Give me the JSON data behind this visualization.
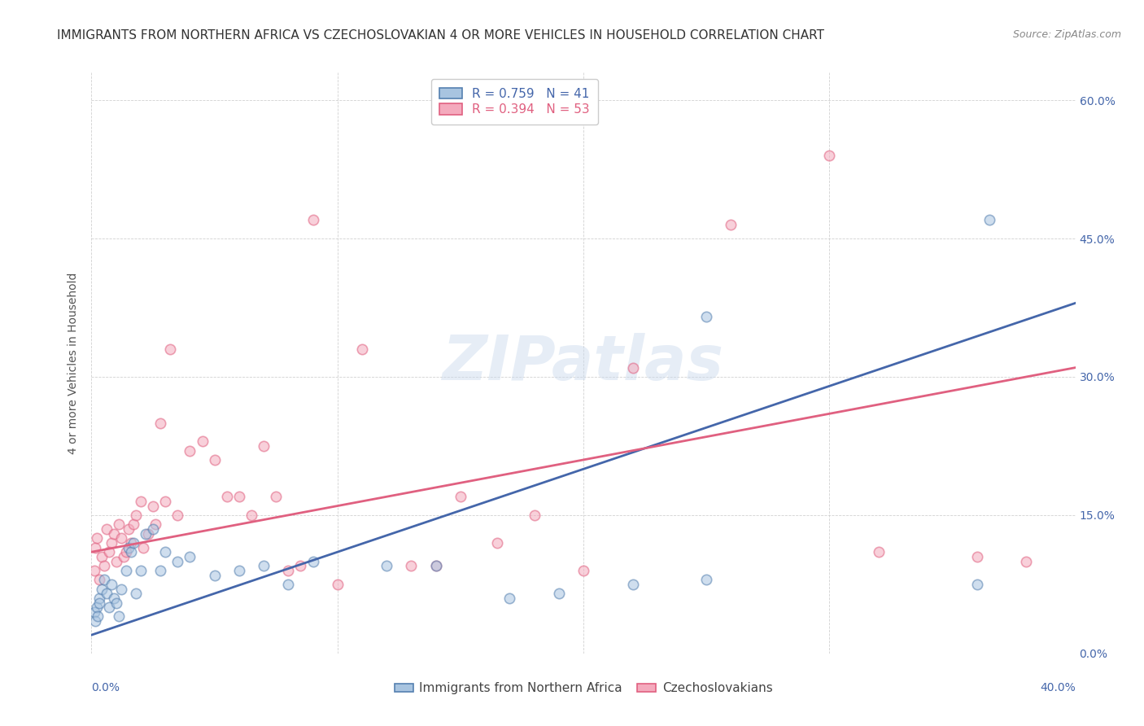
{
  "title": "IMMIGRANTS FROM NORTHERN AFRICA VS CZECHOSLOVAKIAN 4 OR MORE VEHICLES IN HOUSEHOLD CORRELATION CHART",
  "source": "Source: ZipAtlas.com",
  "ylabel": "4 or more Vehicles in Household",
  "xmin": 0.0,
  "xmax": 40.0,
  "ymin": 0.0,
  "ymax": 63.0,
  "blue_R": 0.759,
  "blue_N": 41,
  "pink_R": 0.394,
  "pink_N": 53,
  "blue_color": "#A8C4E0",
  "pink_color": "#F4AABD",
  "blue_edge_color": "#5580B0",
  "pink_edge_color": "#E06080",
  "blue_line_color": "#4466AA",
  "pink_line_color": "#E06080",
  "legend_label_blue": "Immigrants from Northern Africa",
  "legend_label_pink": "Czechoslovakians",
  "blue_scatter_x": [
    0.1,
    0.15,
    0.2,
    0.25,
    0.3,
    0.3,
    0.4,
    0.5,
    0.6,
    0.7,
    0.8,
    0.9,
    1.0,
    1.1,
    1.2,
    1.4,
    1.5,
    1.6,
    1.7,
    1.8,
    2.0,
    2.2,
    2.5,
    2.8,
    3.0,
    3.5,
    4.0,
    5.0,
    6.0,
    7.0,
    8.0,
    9.0,
    12.0,
    14.0,
    17.0,
    19.0,
    22.0,
    25.0,
    25.0,
    36.0,
    36.5
  ],
  "blue_scatter_y": [
    4.5,
    3.5,
    5.0,
    4.0,
    6.0,
    5.5,
    7.0,
    8.0,
    6.5,
    5.0,
    7.5,
    6.0,
    5.5,
    4.0,
    7.0,
    9.0,
    11.5,
    11.0,
    12.0,
    6.5,
    9.0,
    13.0,
    13.5,
    9.0,
    11.0,
    10.0,
    10.5,
    8.5,
    9.0,
    9.5,
    7.5,
    10.0,
    9.5,
    9.5,
    6.0,
    6.5,
    7.5,
    36.5,
    8.0,
    7.5,
    47.0
  ],
  "pink_scatter_x": [
    0.1,
    0.15,
    0.2,
    0.3,
    0.4,
    0.5,
    0.6,
    0.7,
    0.8,
    0.9,
    1.0,
    1.1,
    1.2,
    1.3,
    1.4,
    1.5,
    1.6,
    1.7,
    1.8,
    2.0,
    2.1,
    2.3,
    2.5,
    2.6,
    2.8,
    3.0,
    3.2,
    3.5,
    4.0,
    4.5,
    5.0,
    5.5,
    6.0,
    6.5,
    7.0,
    7.5,
    8.0,
    8.5,
    9.0,
    10.0,
    11.0,
    13.0,
    14.0,
    15.0,
    16.5,
    18.0,
    20.0,
    22.0,
    26.0,
    30.0,
    32.0,
    36.0,
    38.0
  ],
  "pink_scatter_y": [
    9.0,
    11.5,
    12.5,
    8.0,
    10.5,
    9.5,
    13.5,
    11.0,
    12.0,
    13.0,
    10.0,
    14.0,
    12.5,
    10.5,
    11.0,
    13.5,
    12.0,
    14.0,
    15.0,
    16.5,
    11.5,
    13.0,
    16.0,
    14.0,
    25.0,
    16.5,
    33.0,
    15.0,
    22.0,
    23.0,
    21.0,
    17.0,
    17.0,
    15.0,
    22.5,
    17.0,
    9.0,
    9.5,
    47.0,
    7.5,
    33.0,
    9.5,
    9.5,
    17.0,
    12.0,
    15.0,
    9.0,
    31.0,
    46.5,
    54.0,
    11.0,
    10.5,
    10.0
  ],
  "blue_line_x": [
    0.0,
    40.0
  ],
  "blue_line_y_start": 2.0,
  "blue_line_y_end": 38.0,
  "pink_line_x": [
    0.0,
    40.0
  ],
  "pink_line_y_start": 11.0,
  "pink_line_y_end": 31.0,
  "watermark_text": "ZIPatlas",
  "watermark_color": "#C8D8EC",
  "watermark_alpha": 0.45,
  "title_fontsize": 11,
  "axis_label_fontsize": 10,
  "tick_fontsize": 10,
  "legend_fontsize": 11,
  "source_fontsize": 9,
  "scatter_size": 80,
  "scatter_alpha": 0.55,
  "scatter_linewidth": 1.2
}
